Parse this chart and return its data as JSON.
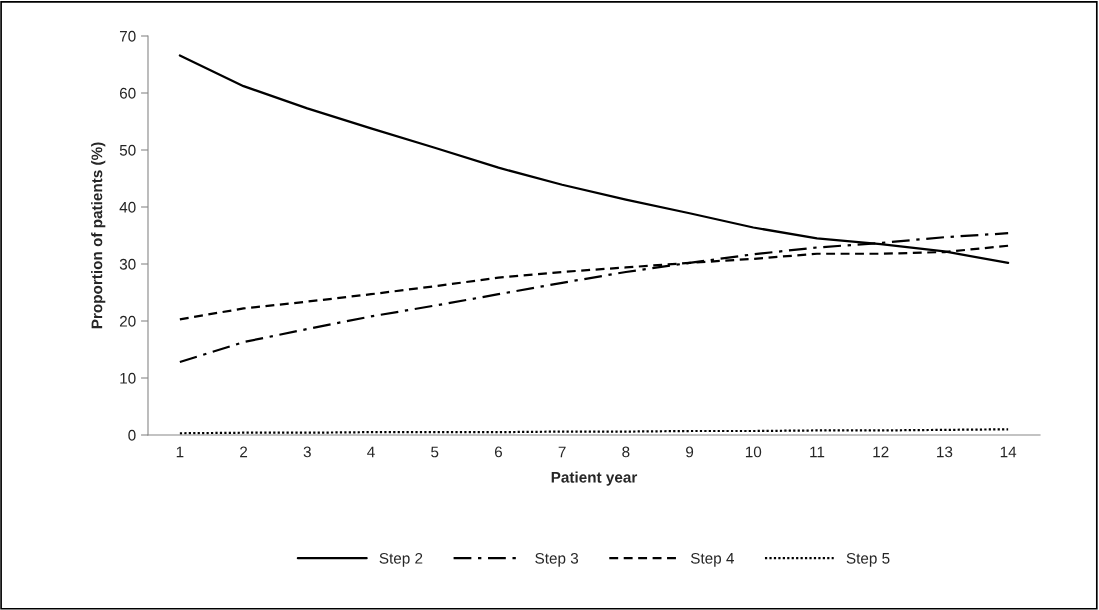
{
  "chart_data": {
    "type": "line",
    "xlabel": "Patient year",
    "ylabel": "Proportion of patients (%)",
    "categories": [
      "1",
      "2",
      "3",
      "4",
      "5",
      "6",
      "7",
      "8",
      "9",
      "10",
      "11",
      "12",
      "13",
      "14"
    ],
    "ylim": [
      0,
      70
    ],
    "yticks": [
      0,
      10,
      20,
      30,
      40,
      50,
      60,
      70
    ],
    "grid": false,
    "legend": "bottom",
    "marker": "none",
    "series": [
      {
        "name": "Step 2",
        "color": "#000000",
        "line_style": "solid",
        "values": [
          66.6,
          61.2,
          57.3,
          53.8,
          50.4,
          46.9,
          43.9,
          41.3,
          38.9,
          36.4,
          34.5,
          33.5,
          32.2,
          30.2
        ]
      },
      {
        "name": "Step 3",
        "color": "#000000",
        "line_style": "dashdot",
        "values": [
          12.8,
          16.3,
          18.6,
          20.8,
          22.7,
          24.7,
          26.7,
          28.6,
          30.2,
          31.7,
          32.9,
          33.7,
          34.7,
          35.4
        ]
      },
      {
        "name": "Step 4",
        "color": "#000000",
        "line_style": "dashed",
        "values": [
          20.3,
          22.2,
          23.4,
          24.7,
          26.1,
          27.6,
          28.6,
          29.4,
          30.2,
          30.9,
          31.8,
          31.8,
          32.1,
          33.2
        ]
      },
      {
        "name": "Step 5",
        "color": "#000000",
        "line_style": "dotted",
        "values": [
          0.3,
          0.4,
          0.4,
          0.5,
          0.5,
          0.5,
          0.6,
          0.6,
          0.7,
          0.7,
          0.8,
          0.8,
          0.9,
          1.0
        ]
      }
    ]
  }
}
